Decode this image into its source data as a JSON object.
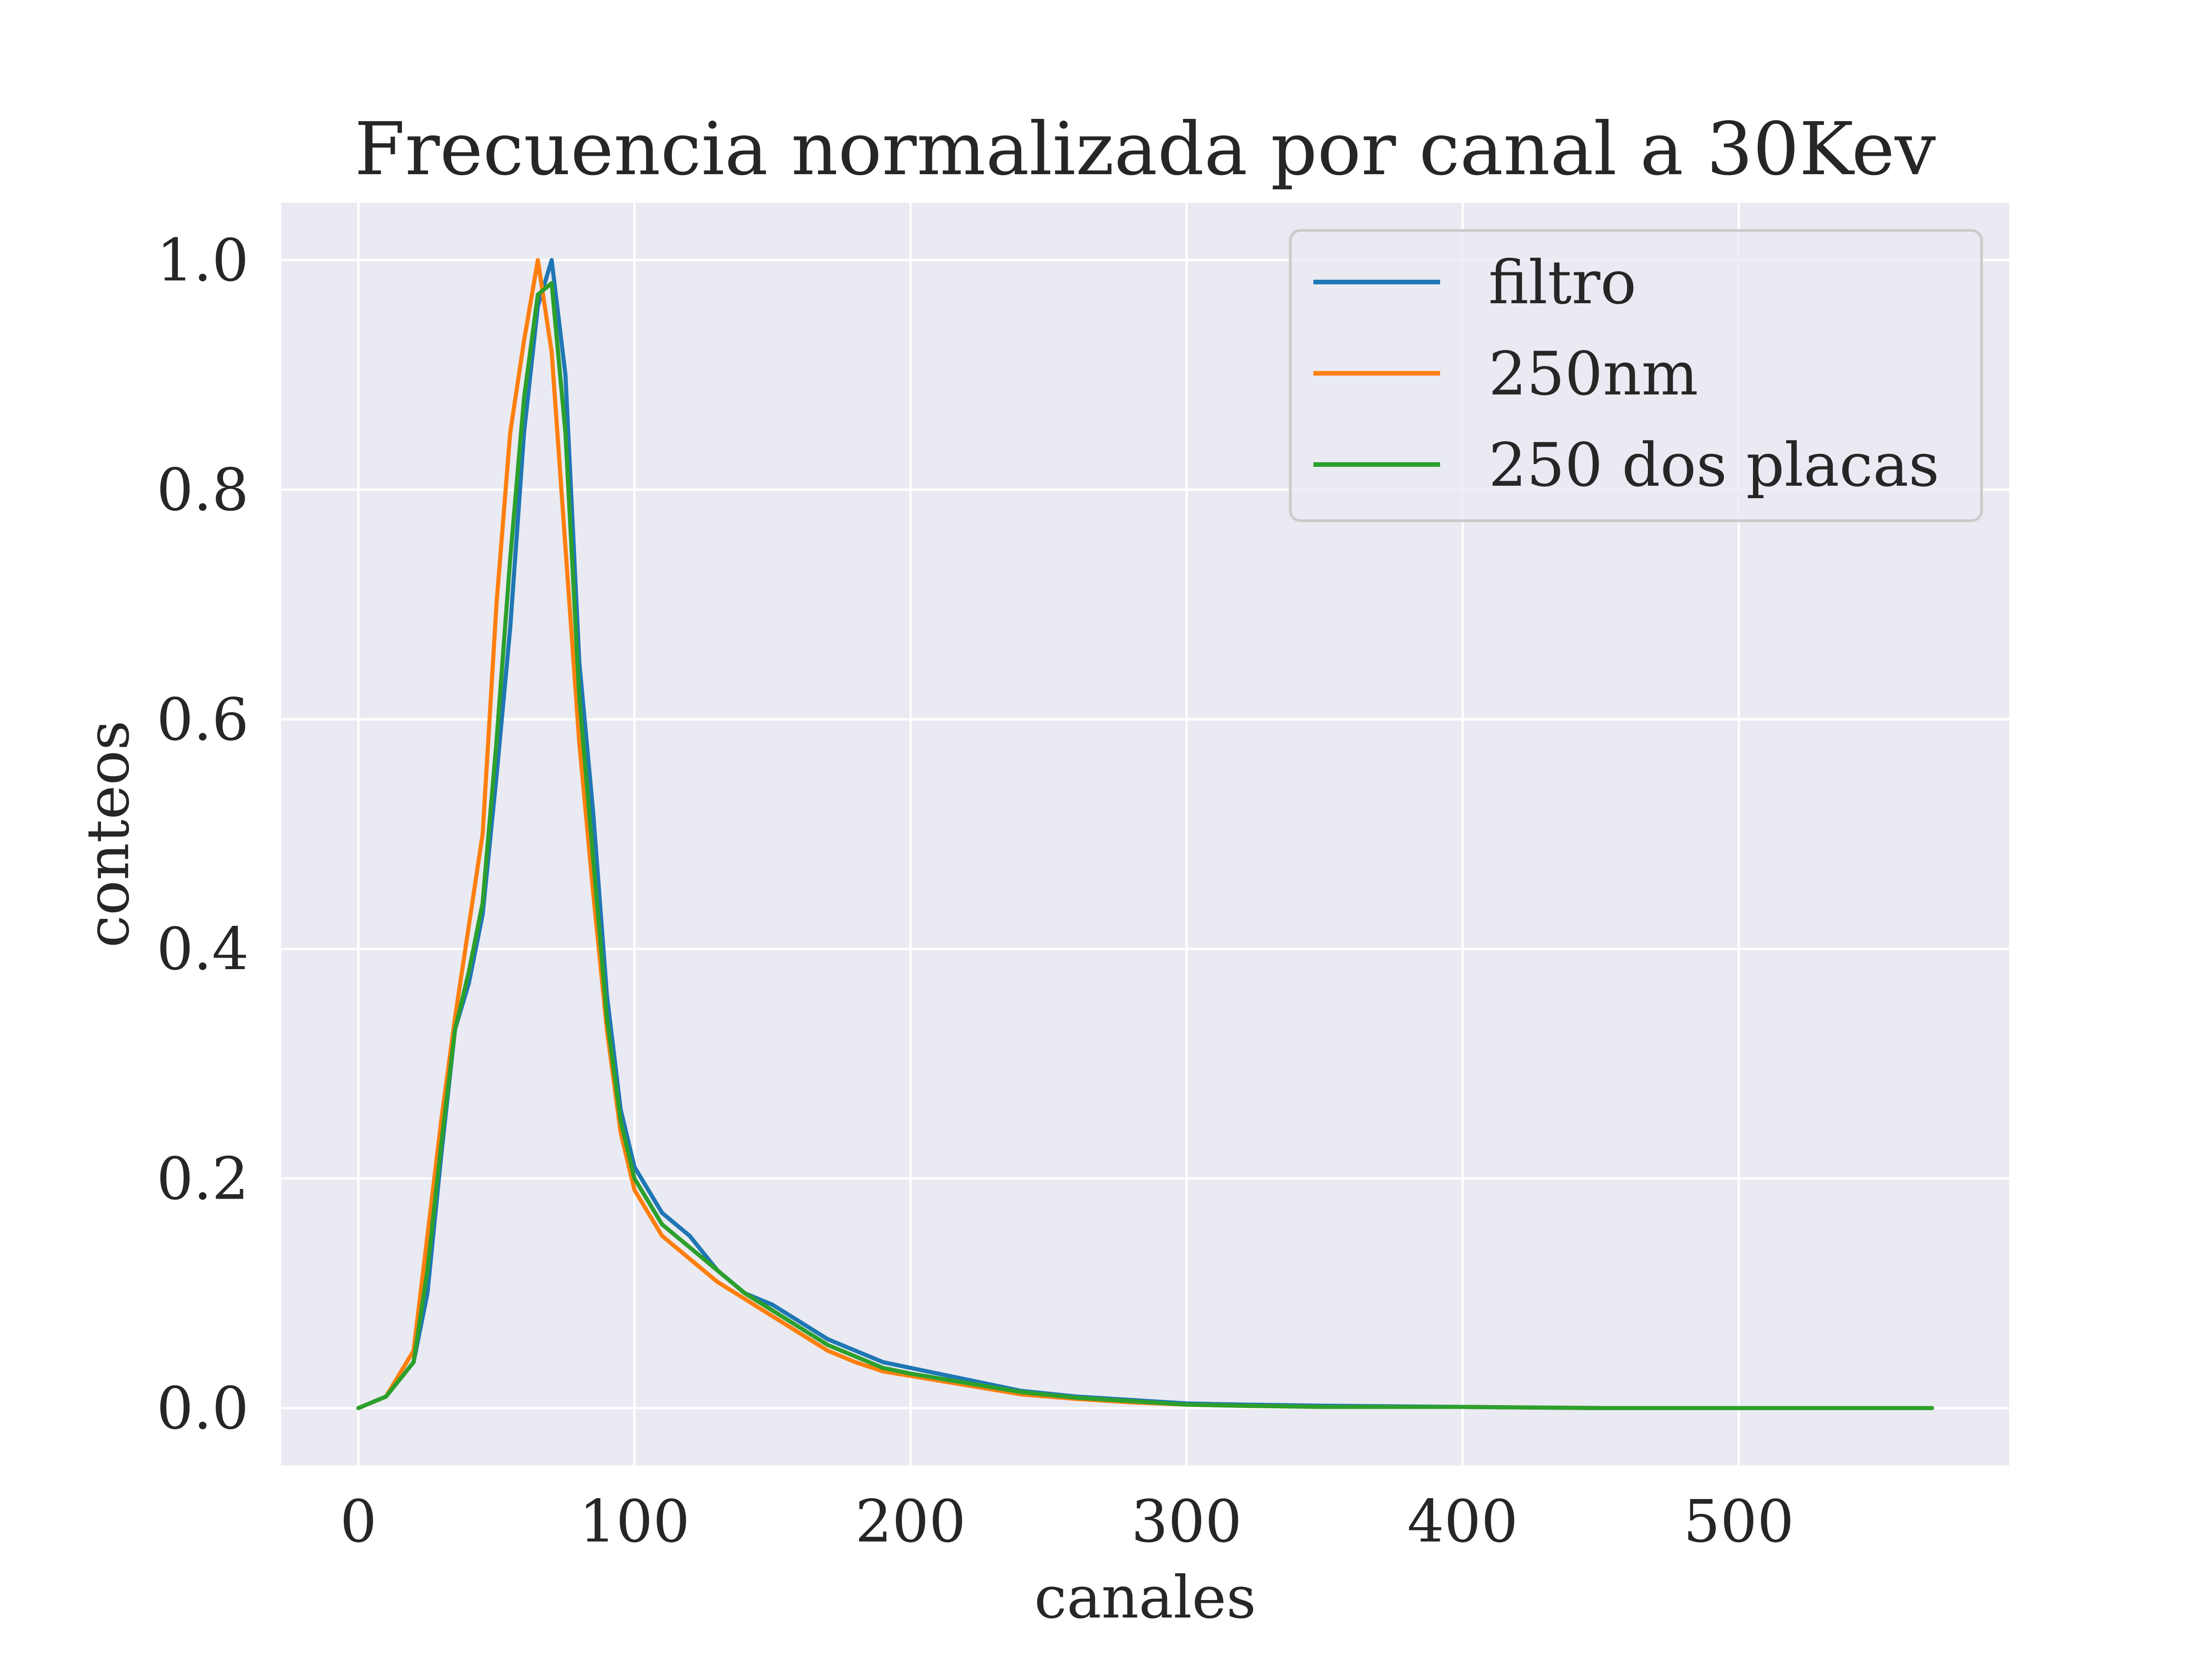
{
  "chart_data": {
    "type": "line",
    "title": "Frecuencia normalizada por canal a 30Kev",
    "xlabel": "canales",
    "ylabel": "conteos",
    "xlim": [
      -28,
      598
    ],
    "ylim": [
      -0.05,
      1.05
    ],
    "xticks": [
      "0",
      "100",
      "200",
      "300",
      "400",
      "500"
    ],
    "yticks": [
      "0.0",
      "0.2",
      "0.4",
      "0.6",
      "0.8",
      "1.0"
    ],
    "grid": true,
    "legend_position": "top-right",
    "colors": {
      "background": "#eaeaf2",
      "grid": "#ffffff"
    },
    "series": [
      {
        "name": "filtro",
        "color": "#1f77b4",
        "x": [
          0,
          10,
          20,
          25,
          30,
          35,
          40,
          45,
          50,
          55,
          60,
          65,
          70,
          75,
          80,
          85,
          90,
          95,
          100,
          110,
          120,
          130,
          140,
          150,
          160,
          170,
          180,
          190,
          200,
          220,
          240,
          260,
          280,
          300,
          320,
          350,
          400,
          450,
          500,
          570
        ],
        "values": [
          0.0,
          0.01,
          0.04,
          0.1,
          0.22,
          0.33,
          0.37,
          0.43,
          0.55,
          0.68,
          0.85,
          0.96,
          1.0,
          0.9,
          0.65,
          0.52,
          0.36,
          0.26,
          0.21,
          0.17,
          0.15,
          0.12,
          0.1,
          0.09,
          0.075,
          0.06,
          0.05,
          0.04,
          0.035,
          0.025,
          0.015,
          0.01,
          0.007,
          0.004,
          0.003,
          0.002,
          0.001,
          0.0,
          0.0,
          0.0
        ]
      },
      {
        "name": "250nm",
        "color": "#ff7f0e",
        "x": [
          0,
          10,
          20,
          25,
          30,
          35,
          40,
          45,
          50,
          55,
          60,
          65,
          70,
          75,
          80,
          85,
          90,
          95,
          100,
          110,
          120,
          130,
          140,
          150,
          160,
          170,
          180,
          190,
          200,
          220,
          240,
          260,
          280,
          300,
          320,
          350,
          400,
          450,
          500,
          570
        ],
        "values": [
          0.0,
          0.01,
          0.05,
          0.15,
          0.25,
          0.34,
          0.42,
          0.5,
          0.7,
          0.85,
          0.93,
          1.0,
          0.92,
          0.75,
          0.58,
          0.45,
          0.33,
          0.24,
          0.19,
          0.15,
          0.13,
          0.11,
          0.095,
          0.08,
          0.065,
          0.05,
          0.04,
          0.032,
          0.028,
          0.02,
          0.012,
          0.008,
          0.005,
          0.003,
          0.002,
          0.001,
          0.001,
          0.0,
          0.0,
          0.0
        ]
      },
      {
        "name": "250 dos placas",
        "color": "#2ca02c",
        "x": [
          0,
          10,
          20,
          25,
          30,
          35,
          40,
          45,
          50,
          55,
          60,
          65,
          70,
          75,
          80,
          85,
          90,
          95,
          100,
          110,
          120,
          130,
          140,
          150,
          160,
          170,
          180,
          190,
          200,
          220,
          240,
          260,
          280,
          300,
          320,
          350,
          400,
          450,
          500,
          570
        ],
        "values": [
          0.0,
          0.01,
          0.04,
          0.12,
          0.23,
          0.33,
          0.38,
          0.44,
          0.58,
          0.74,
          0.88,
          0.97,
          0.98,
          0.85,
          0.62,
          0.48,
          0.34,
          0.25,
          0.2,
          0.16,
          0.14,
          0.12,
          0.1,
          0.085,
          0.07,
          0.055,
          0.045,
          0.035,
          0.03,
          0.022,
          0.014,
          0.009,
          0.006,
          0.003,
          0.002,
          0.001,
          0.001,
          0.0,
          0.0,
          0.0
        ]
      }
    ]
  }
}
